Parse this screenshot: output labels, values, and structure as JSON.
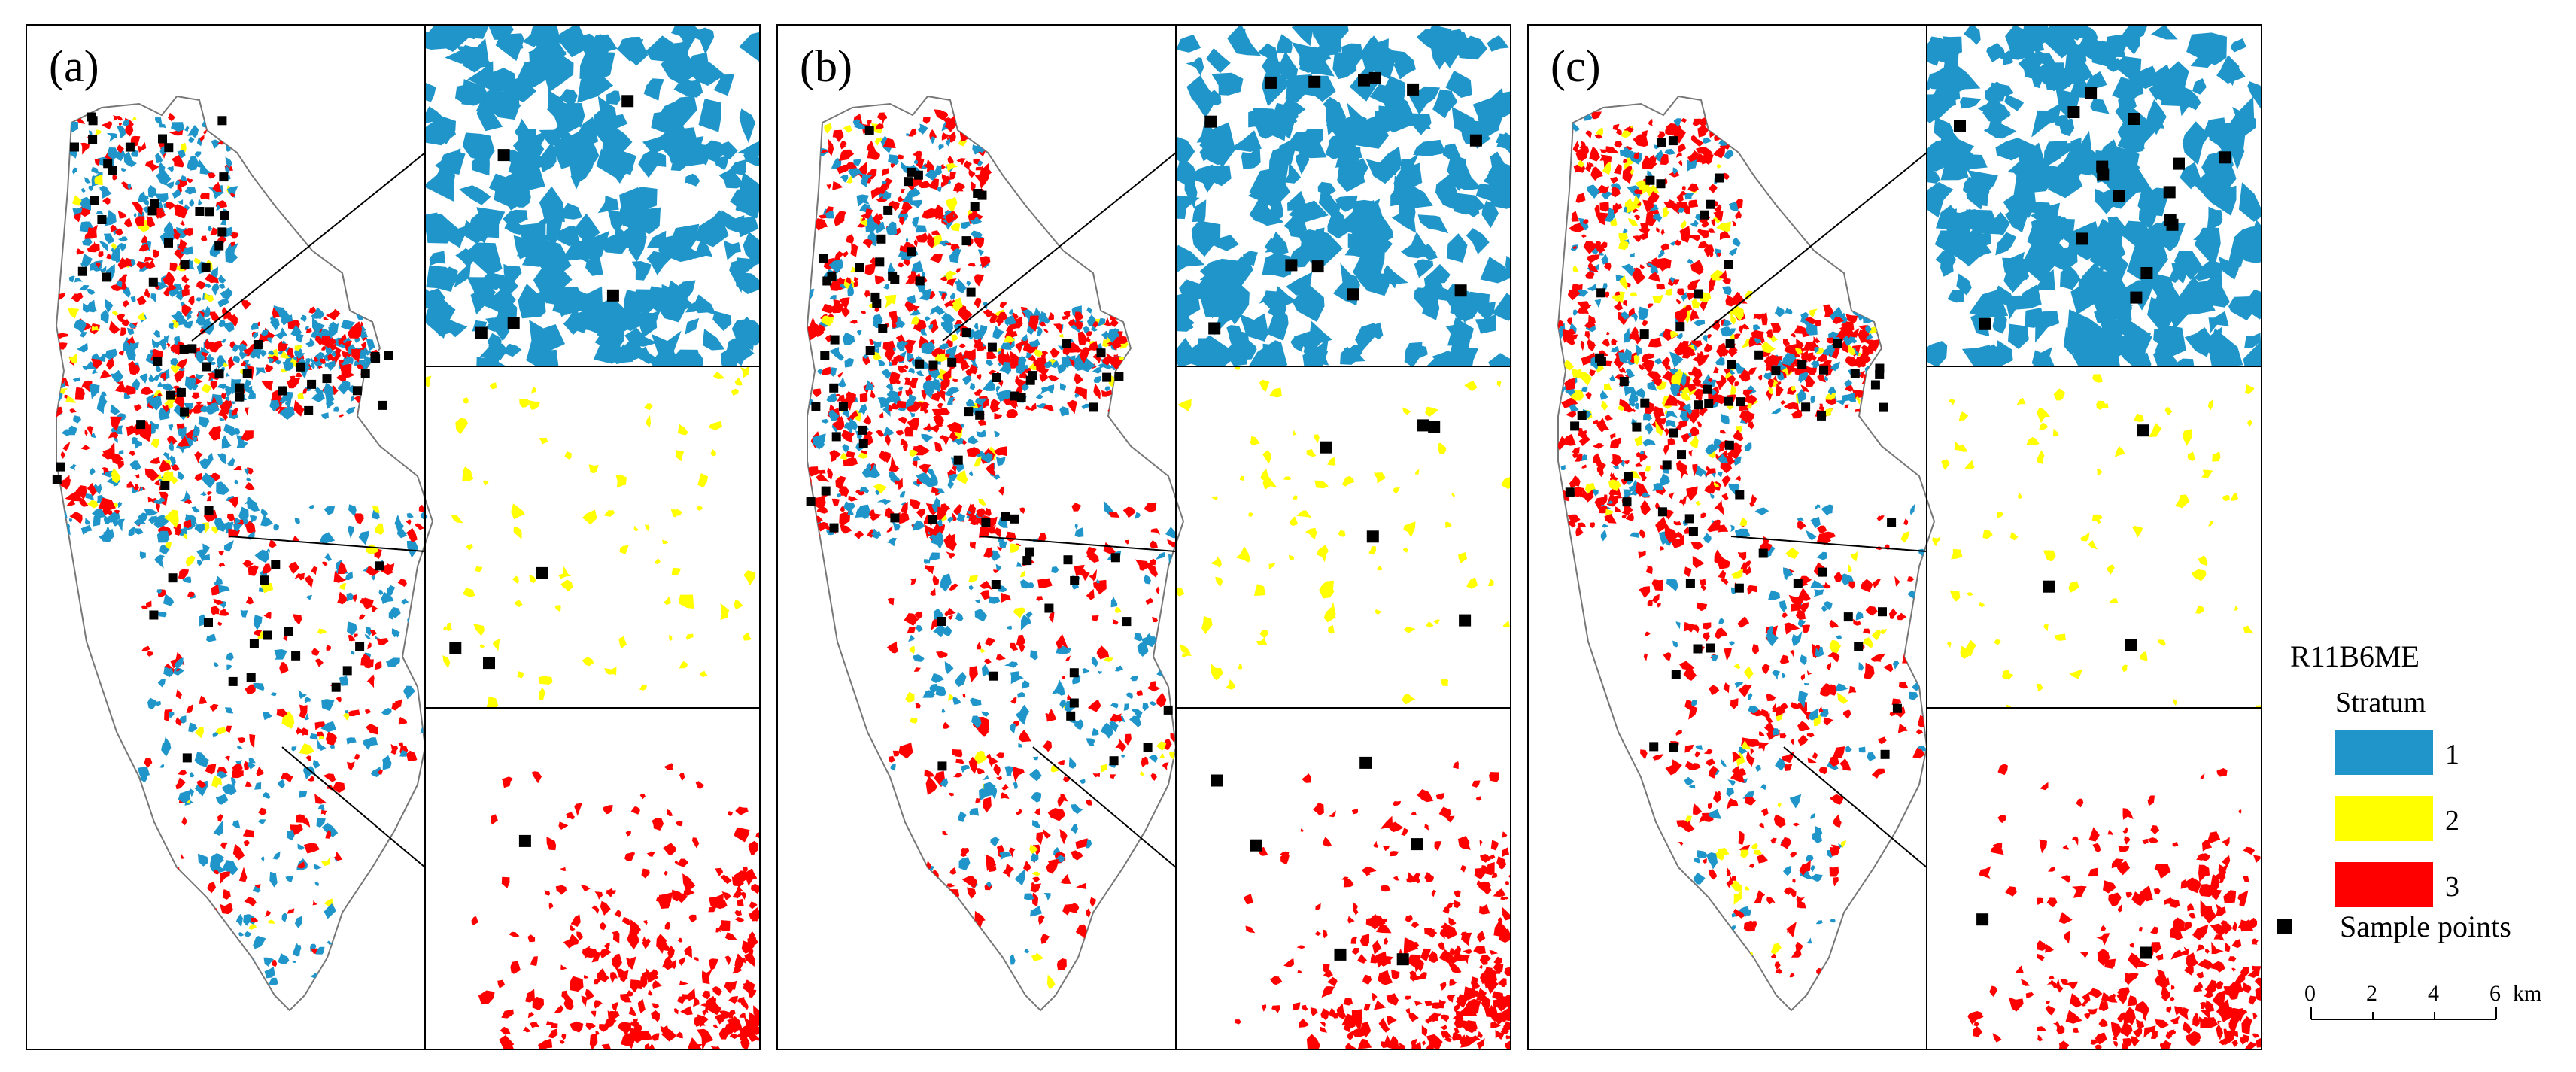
{
  "panels": [
    {
      "label": "(a)",
      "main_points": 70,
      "blue_points": 5,
      "yellow_points": 3,
      "red_points": 1
    },
    {
      "label": "(b)",
      "main_points": 75,
      "blue_points": 12,
      "yellow_points": 5,
      "red_points": 6
    },
    {
      "label": "(c)",
      "main_points": 65,
      "blue_points": 16,
      "yellow_points": 3,
      "red_points": 2
    }
  ],
  "legend": {
    "title": "R11B6ME",
    "subtitle": "Stratum",
    "items": [
      {
        "label": "1",
        "color": "#1f95c9"
      },
      {
        "label": "2",
        "color": "#ffff00"
      },
      {
        "label": "3",
        "color": "#ff0000"
      }
    ],
    "sample_label": "Sample points"
  },
  "scale_bar": {
    "ticks": [
      "0",
      "2",
      "4",
      "6"
    ],
    "unit": "km"
  },
  "colors": {
    "stratum1": "#1f95c9",
    "stratum2": "#ffff00",
    "stratum3": "#ff0000",
    "points": "#000000"
  }
}
